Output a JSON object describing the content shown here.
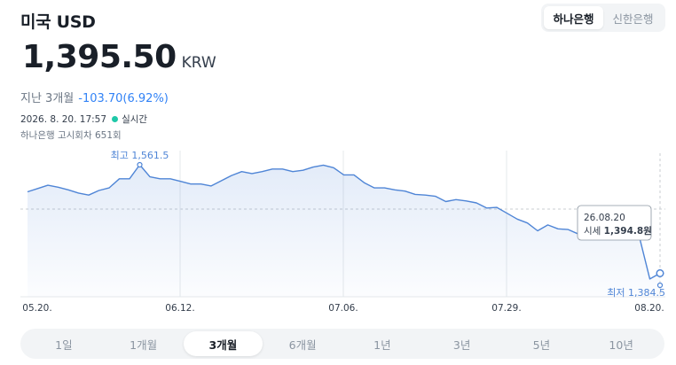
{
  "title": "미국 USD",
  "banks": [
    "하나은행",
    "신한은행"
  ],
  "price": {
    "value": "1,395.50",
    "unit": "KRW"
  },
  "change": {
    "label": "지난 3개월",
    "value": "-103.70(6.92%)"
  },
  "meta": {
    "datetime": "2026. 8. 20. 17:57",
    "live": "실시간",
    "notice": "하나은행 고시회차 651회"
  },
  "periods": [
    "1일",
    "1개월",
    "3개월",
    "6개월",
    "1년",
    "3년",
    "5년",
    "10년"
  ],
  "colors": {
    "line": "#4f85d6",
    "accent": "#3182f6",
    "live": "#1fc8a8"
  },
  "chart_data": {
    "type": "area",
    "x_ticks": [
      "05.20.",
      "06.12.",
      "07.06.",
      "07.29.",
      "08.20."
    ],
    "high_label": "최고 1,561.5",
    "low_label": "최저 1,384.5",
    "tooltip": {
      "date": "26.08.20",
      "label": "시세",
      "value": "1,394.8원"
    },
    "values": [
      1520,
      1525,
      1530,
      1527,
      1523,
      1518,
      1515,
      1522,
      1526,
      1540,
      1540,
      1561.5,
      1543,
      1540,
      1540,
      1536,
      1532,
      1532,
      1529,
      1537,
      1545,
      1551,
      1548,
      1551,
      1555,
      1555,
      1551,
      1553,
      1558,
      1561,
      1557,
      1546,
      1546,
      1534,
      1526,
      1526,
      1523,
      1521,
      1516,
      1515,
      1513,
      1505,
      1508,
      1506,
      1503,
      1495,
      1496,
      1487,
      1478,
      1472,
      1460,
      1469,
      1463,
      1462,
      1455,
      1457,
      1450,
      1452,
      1454,
      1453,
      1449,
      1386,
      1394.8
    ]
  }
}
